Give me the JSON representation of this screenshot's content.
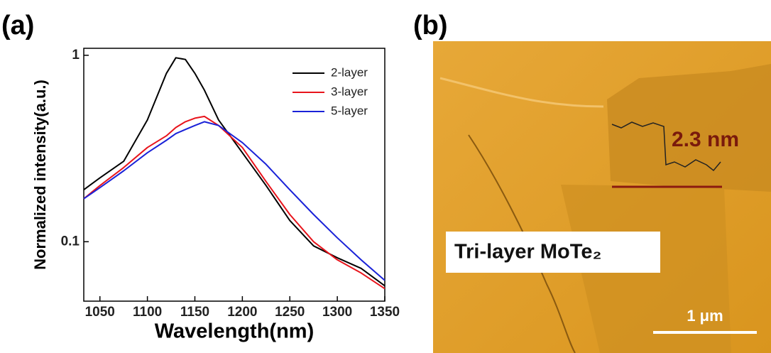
{
  "chart_data": {
    "type": "line",
    "panel_label": "(a)",
    "xlabel": "Wavelength(nm)",
    "ylabel": "Normalized intensity(a.u.)",
    "xlim": [
      1033,
      1350
    ],
    "xticks": [
      1050,
      1100,
      1150,
      1200,
      1250,
      1300,
      1350
    ],
    "ylim": [
      0.048,
      1.09
    ],
    "yticks": [
      0.1,
      1
    ],
    "yscale": "log",
    "legend": "upper right",
    "x": [
      1033,
      1050,
      1075,
      1100,
      1120,
      1130,
      1140,
      1150,
      1160,
      1175,
      1200,
      1225,
      1250,
      1275,
      1300,
      1325,
      1350
    ],
    "series": [
      {
        "name": "2-layer",
        "color": "#000000",
        "values": [
          0.19,
          0.22,
          0.27,
          0.45,
          0.8,
          0.97,
          0.95,
          0.8,
          0.65,
          0.45,
          0.3,
          0.2,
          0.13,
          0.095,
          0.082,
          0.072,
          0.058
        ]
      },
      {
        "name": "3-layer",
        "color": "#e8141c",
        "values": [
          0.17,
          0.2,
          0.25,
          0.32,
          0.37,
          0.41,
          0.44,
          0.46,
          0.47,
          0.42,
          0.32,
          0.21,
          0.14,
          0.1,
          0.08,
          0.068,
          0.056
        ]
      },
      {
        "name": "5-layer",
        "color": "#1a22d8",
        "values": [
          0.17,
          0.195,
          0.24,
          0.3,
          0.35,
          0.38,
          0.4,
          0.42,
          0.44,
          0.42,
          0.34,
          0.26,
          0.19,
          0.14,
          0.105,
          0.08,
          0.062
        ]
      }
    ]
  },
  "image": {
    "panel_label": "(b)",
    "step_label": "2.3 nm",
    "sample_label": "Tri-layer MoTe₂",
    "scale_label": "1 μm"
  }
}
